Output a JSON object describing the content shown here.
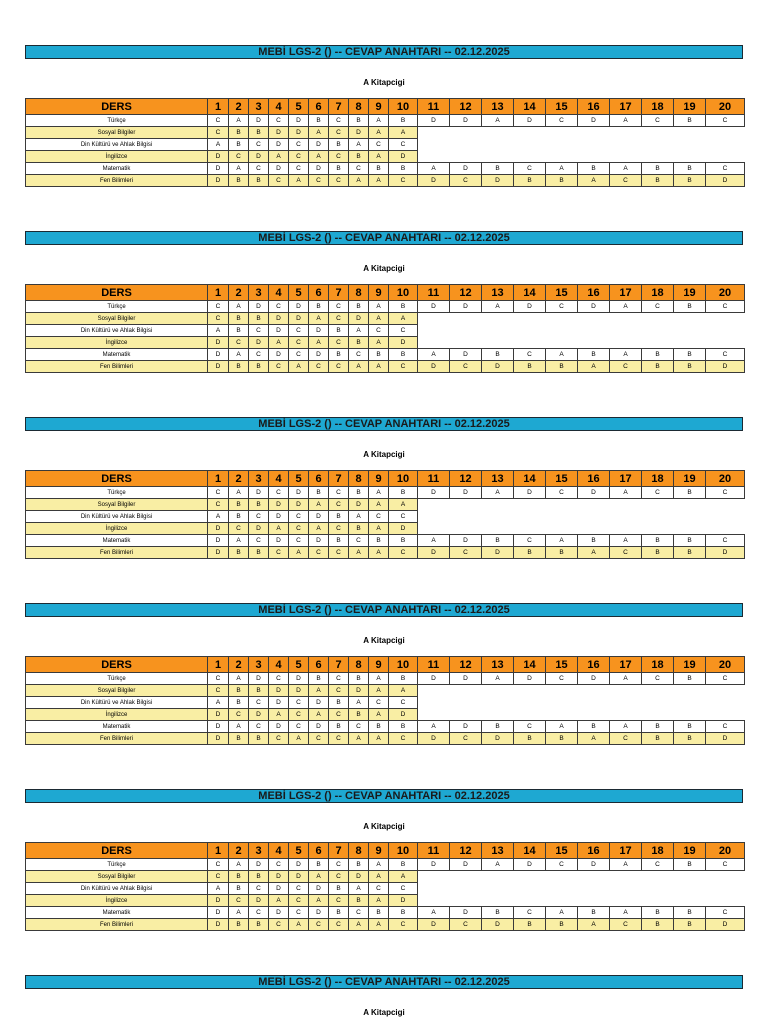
{
  "title": "MEBİ LGS-2 () -- CEVAP ANAHTARI -- 02.12.2025",
  "booklet": "A Kitapcigi",
  "header_label": "DERS",
  "question_numbers": [
    "1",
    "2",
    "3",
    "4",
    "5",
    "6",
    "7",
    "8",
    "9",
    "10",
    "11",
    "12",
    "13",
    "14",
    "15",
    "16",
    "17",
    "18",
    "19",
    "20"
  ],
  "subjects": [
    {
      "name": "Türkçe",
      "answers": [
        "C",
        "A",
        "D",
        "C",
        "D",
        "B",
        "C",
        "B",
        "A",
        "B",
        "D",
        "D",
        "A",
        "D",
        "C",
        "D",
        "A",
        "C",
        "B",
        "C"
      ]
    },
    {
      "name": "Sosyal Bilgiler",
      "answers": [
        "C",
        "B",
        "B",
        "D",
        "D",
        "A",
        "C",
        "D",
        "A",
        "A"
      ]
    },
    {
      "name": "Din Kültürü ve Ahlak Bilgisi",
      "answers": [
        "A",
        "B",
        "C",
        "D",
        "C",
        "D",
        "B",
        "A",
        "C",
        "C"
      ]
    },
    {
      "name": "İngilizce",
      "answers": [
        "D",
        "C",
        "D",
        "A",
        "C",
        "A",
        "C",
        "B",
        "A",
        "D"
      ]
    },
    {
      "name": "Matematik",
      "answers": [
        "D",
        "A",
        "C",
        "D",
        "C",
        "D",
        "B",
        "C",
        "B",
        "B",
        "A",
        "D",
        "B",
        "C",
        "A",
        "B",
        "A",
        "B",
        "B",
        "C"
      ]
    },
    {
      "name": "Fen Bilimleri",
      "answers": [
        "D",
        "B",
        "B",
        "C",
        "A",
        "C",
        "C",
        "A",
        "A",
        "C",
        "D",
        "C",
        "D",
        "B",
        "B",
        "A",
        "C",
        "B",
        "B",
        "D"
      ]
    }
  ],
  "colors": {
    "title_bar": "#1ea8d2",
    "header_row": "#f7931e",
    "alt_row": "#f9eea4"
  }
}
